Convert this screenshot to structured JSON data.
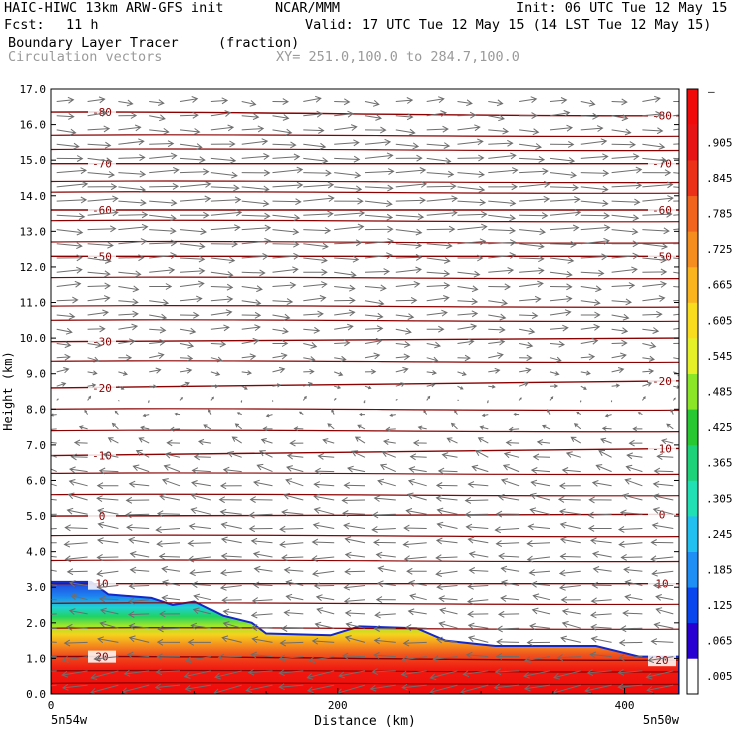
{
  "header": {
    "model": "HAIC-HIWC 13km ARW-GFS init",
    "org": "NCAR/MMM",
    "init": "Init: 06 UTC Tue 12 May 15",
    "fcst_label": "Fcst:",
    "fcst_value": "11 h",
    "valid": "Valid: 17 UTC Tue 12 May 15 (14 LST Tue 12 May 15)",
    "field": "Boundary Layer Tracer",
    "field_units": "(fraction)",
    "vectors": "Circulation vectors",
    "xy": "XY= 251.0,100.0 to 284.7,100.0"
  },
  "chart_data": {
    "type": "heatmap",
    "title": "Boundary Layer Tracer (fraction) with temperature contours and circulation vectors",
    "xlabel": "Distance (km)",
    "ylabel": "Height (km)",
    "xlim": [
      0,
      438
    ],
    "ylim": [
      0,
      17
    ],
    "x_ticks": [
      "0",
      "200",
      "400"
    ],
    "x_end_labels": [
      "5n54w",
      "5n50w"
    ],
    "y_ticks": [
      "0.0",
      "1.0",
      "2.0",
      "3.0",
      "4.0",
      "5.0",
      "6.0",
      "7.0",
      "8.0",
      "9.0",
      "10.0",
      "11.0",
      "12.0",
      "13.0",
      "14.0",
      "15.0",
      "16.0",
      "17.0"
    ],
    "colorbar": {
      "labels": [
        ".005",
        ".065",
        ".125",
        ".185",
        ".245",
        ".305",
        ".365",
        ".425",
        ".485",
        ".545",
        ".605",
        ".665",
        ".725",
        ".785",
        ".845",
        ".905"
      ],
      "colors": [
        "#ffffff",
        "#2800d2",
        "#0a46ee",
        "#1f8ff5",
        "#22c0f0",
        "#20e0b4",
        "#1ed27a",
        "#28c832",
        "#8ce628",
        "#e6f028",
        "#fadc1e",
        "#fab41e",
        "#f58c1e",
        "#f0641e",
        "#eb3219",
        "#e61414",
        "#f00a0a"
      ],
      "top_label": "–"
    },
    "boundary_layer_top_km": [
      {
        "x": 0,
        "z": 3.15
      },
      {
        "x": 28,
        "z": 3.15
      },
      {
        "x": 40,
        "z": 2.8
      },
      {
        "x": 70,
        "z": 2.7
      },
      {
        "x": 85,
        "z": 2.5
      },
      {
        "x": 100,
        "z": 2.6
      },
      {
        "x": 120,
        "z": 2.2
      },
      {
        "x": 140,
        "z": 2.0
      },
      {
        "x": 150,
        "z": 1.7
      },
      {
        "x": 195,
        "z": 1.65
      },
      {
        "x": 215,
        "z": 1.9
      },
      {
        "x": 255,
        "z": 1.85
      },
      {
        "x": 275,
        "z": 1.5
      },
      {
        "x": 310,
        "z": 1.35
      },
      {
        "x": 340,
        "z": 1.35
      },
      {
        "x": 380,
        "z": 1.35
      },
      {
        "x": 410,
        "z": 1.05
      },
      {
        "x": 438,
        "z": 1.05
      }
    ],
    "temperature_contours": [
      {
        "label": "20",
        "z_left": 1.05,
        "z_right": 0.95,
        "label_left": true,
        "label_right": true
      },
      {
        "label": "10",
        "z_left": 3.1,
        "z_right": 3.1,
        "label_left": true,
        "label_right": true
      },
      {
        "label": "0",
        "z_left": 5.0,
        "z_right": 5.05,
        "label_left": true,
        "label_right": true
      },
      {
        "label": "-10",
        "z_left": 6.7,
        "z_right": 6.9,
        "label_left": true,
        "label_right": true
      },
      {
        "label": "-20",
        "z_left": 8.6,
        "z_right": 8.8,
        "label_left": true,
        "label_right": true
      },
      {
        "label": "-30",
        "z_left": 9.9,
        "z_right": 10.0,
        "label_left": true,
        "label_right": false
      },
      {
        "label": "-50",
        "z_left": 12.3,
        "z_right": 12.3,
        "label_left": true,
        "label_right": true
      },
      {
        "label": "-60",
        "z_left": 13.6,
        "z_right": 13.6,
        "label_left": true,
        "label_right": true
      },
      {
        "label": "-70",
        "z_left": 14.9,
        "z_right": 14.9,
        "label_left": true,
        "label_right": true
      },
      {
        "label": "-80",
        "z_left": 16.35,
        "z_right": 16.25,
        "label_left": true,
        "label_right": true
      }
    ],
    "unlabeled_contour_heights_km": [
      0.3,
      0.65,
      1.85,
      2.55,
      3.75,
      4.45,
      5.6,
      6.2,
      7.4,
      8.0,
      9.35,
      10.5,
      10.9,
      11.7,
      12.7,
      13.3,
      14.1,
      14.4,
      15.3,
      15.7
    ],
    "vectors": {
      "note": "Circulation vectors on a regular grid; upper levels westerly (pointing right), mid/low levels easterly (pointing left), with a strong easterly component near the surface.",
      "profile": [
        {
          "z": 0.5,
          "u": -1.0,
          "w": -0.2
        },
        {
          "z": 1.5,
          "u": -0.8,
          "w": 0.1
        },
        {
          "z": 2.5,
          "u": -0.7,
          "w": 0.05
        },
        {
          "z": 3.5,
          "u": -0.75,
          "w": 0.0
        },
        {
          "z": 4.5,
          "u": -0.85,
          "w": 0.05
        },
        {
          "z": 5.5,
          "u": -0.8,
          "w": 0.1
        },
        {
          "z": 6.5,
          "u": -0.6,
          "w": 0.15
        },
        {
          "z": 7.3,
          "u": -0.35,
          "w": 0.1
        },
        {
          "z": 8.0,
          "u": -0.1,
          "w": 0.05
        },
        {
          "z": 8.7,
          "u": 0.3,
          "w": 0.0
        },
        {
          "z": 9.5,
          "u": 0.5,
          "w": 0.0
        },
        {
          "z": 10.5,
          "u": 0.7,
          "w": 0.0
        },
        {
          "z": 11.5,
          "u": 0.85,
          "w": 0.0
        },
        {
          "z": 12.5,
          "u": 1.0,
          "w": 0.0
        },
        {
          "z": 13.5,
          "u": 1.1,
          "w": 0.0
        },
        {
          "z": 14.5,
          "u": 1.1,
          "w": 0.0
        },
        {
          "z": 15.5,
          "u": 0.9,
          "w": 0.0
        },
        {
          "z": 16.5,
          "u": 0.6,
          "w": 0.0
        }
      ]
    }
  }
}
